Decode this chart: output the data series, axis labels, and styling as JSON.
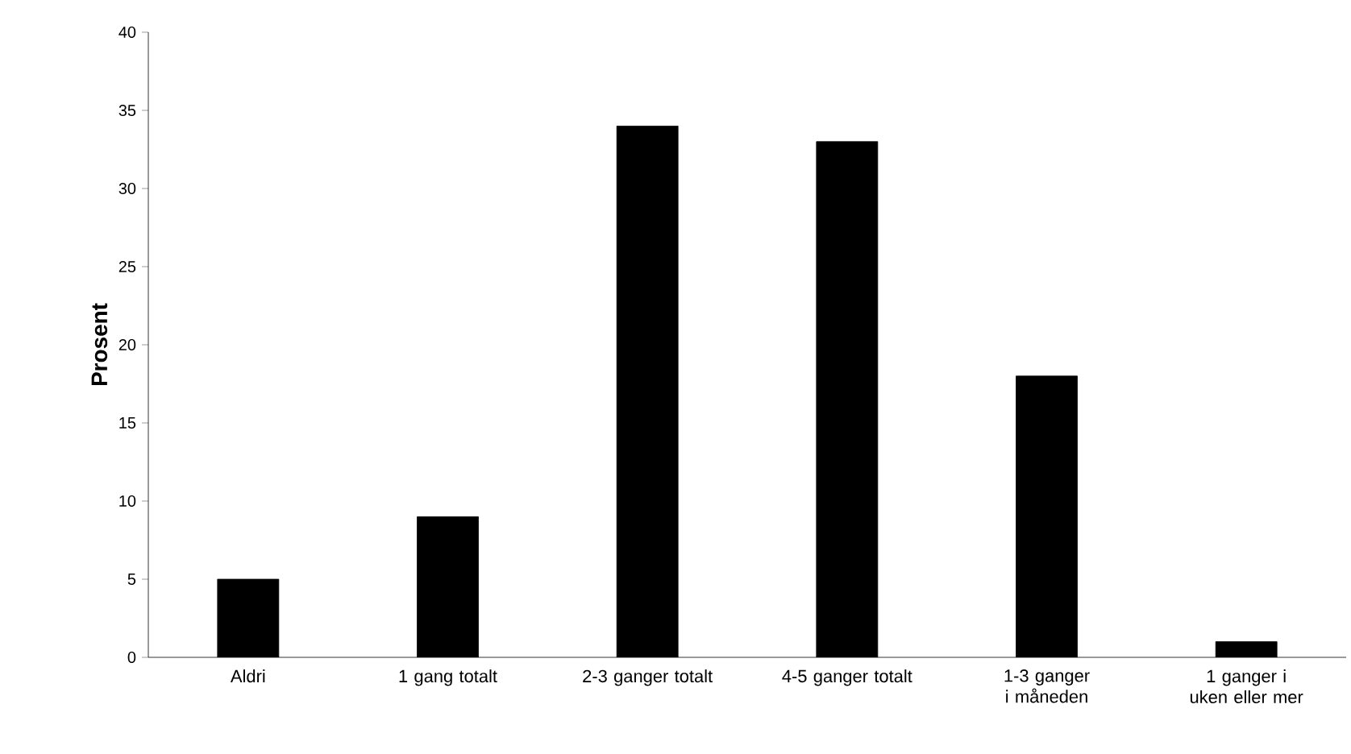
{
  "chart_data": {
    "type": "bar",
    "ylabel": "Prosent",
    "categories": [
      "Aldri",
      "1 gang totalt",
      "2-3 ganger totalt",
      "4-5 ganger totalt",
      "1-3 ganger i måneden",
      "1 ganger i uken eller mer"
    ],
    "values": [
      5,
      9,
      34,
      33,
      18,
      1
    ],
    "color": "#000000",
    "ylim": [
      0,
      40
    ],
    "yticks": [
      0,
      5,
      10,
      15,
      20,
      25,
      30,
      35,
      40
    ],
    "grid": false
  }
}
